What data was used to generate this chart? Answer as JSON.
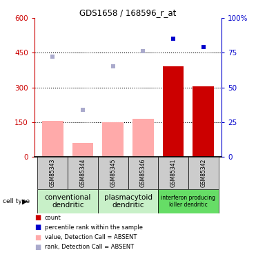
{
  "title": "GDS1658 / 168596_r_at",
  "samples": [
    "GSM85343",
    "GSM85344",
    "GSM85345",
    "GSM85346",
    "GSM85341",
    "GSM85342"
  ],
  "bar_values": [
    155,
    60,
    150,
    165,
    390,
    305
  ],
  "bar_absent": [
    true,
    true,
    true,
    true,
    false,
    false
  ],
  "rank_values_pct": [
    72,
    34,
    65,
    76,
    85,
    79
  ],
  "rank_absent": [
    true,
    true,
    true,
    true,
    false,
    false
  ],
  "ylim_left": [
    0,
    600
  ],
  "yticks_left": [
    0,
    150,
    300,
    450,
    600
  ],
  "ytick_labels_left": [
    "0",
    "150",
    "300",
    "450",
    "600"
  ],
  "ytick_labels_right": [
    "0",
    "25",
    "50",
    "75",
    "100%"
  ],
  "bar_color_present": "#cc0000",
  "bar_color_absent": "#ffaaaa",
  "rank_color_present": "#0000cc",
  "rank_color_absent": "#aaaacc",
  "bg_color": "#cccccc",
  "left_axis_color": "#cc0000",
  "right_axis_color": "#0000cc",
  "group_defs": [
    {
      "label": "conventional\ndendritic",
      "start": 0,
      "end": 1,
      "color": "#c8f0c8"
    },
    {
      "label": "plasmacytoid\ndendritic",
      "start": 2,
      "end": 3,
      "color": "#c8f0c8"
    },
    {
      "label": "interferon producing\nkiller dendritic",
      "start": 4,
      "end": 5,
      "color": "#66dd66"
    }
  ],
  "legend_items": [
    {
      "color": "#cc0000",
      "label": "count"
    },
    {
      "color": "#0000cc",
      "label": "percentile rank within the sample"
    },
    {
      "color": "#ffaaaa",
      "label": "value, Detection Call = ABSENT"
    },
    {
      "color": "#aaaacc",
      "label": "rank, Detection Call = ABSENT"
    }
  ]
}
